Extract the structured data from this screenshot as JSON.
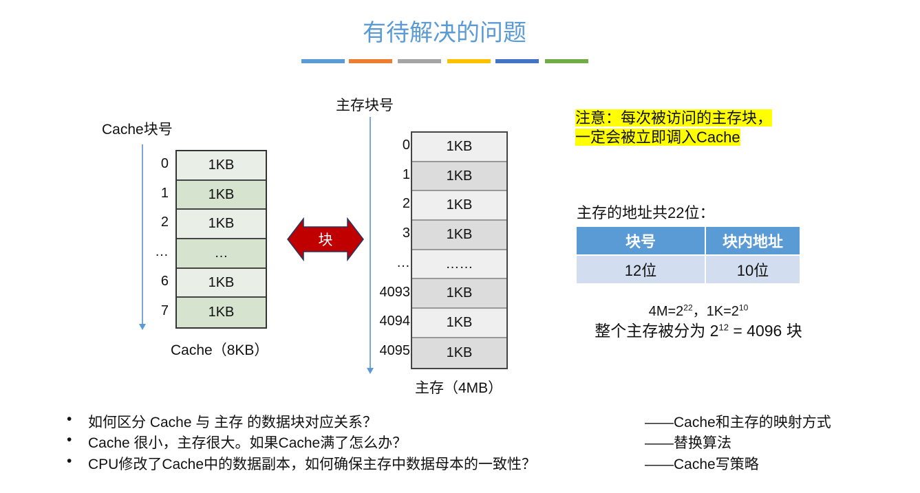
{
  "title": "有待解决的问题",
  "accent_bars": [
    "#5b9bd5",
    "#ed7d31",
    "#a5a5a5",
    "#ffc000",
    "#4472c4",
    "#70ad47"
  ],
  "cache": {
    "axis_label": "Cache块号",
    "caption": "Cache（8KB）",
    "rows": [
      {
        "num": "0",
        "size": "1KB"
      },
      {
        "num": "1",
        "size": "1KB"
      },
      {
        "num": "2",
        "size": "1KB"
      },
      {
        "num": "…",
        "size": "…"
      },
      {
        "num": "6",
        "size": "1KB"
      },
      {
        "num": "7",
        "size": "1KB"
      }
    ]
  },
  "arrow": {
    "label": "块",
    "color": "#c00000"
  },
  "memory": {
    "axis_label": "主存块号",
    "caption": "主存（4MB）",
    "rows": [
      {
        "num": "0",
        "size": "1KB"
      },
      {
        "num": "1",
        "size": "1KB"
      },
      {
        "num": "2",
        "size": "1KB"
      },
      {
        "num": "3",
        "size": "1KB"
      },
      {
        "num": "…",
        "size": "……"
      },
      {
        "num": "4093",
        "size": "1KB"
      },
      {
        "num": "4094",
        "size": "1KB"
      },
      {
        "num": "4095",
        "size": "1KB"
      }
    ]
  },
  "note": {
    "line1": "注意：每次被访问的主存块，",
    "line2": "一定会被立即调入Cache"
  },
  "address": {
    "heading": "主存的地址共22位：",
    "headers": [
      "块号",
      "块内地址"
    ],
    "values": [
      "12位",
      "10位"
    ]
  },
  "formula": {
    "f1a": "4M=2",
    "f1b": "22",
    "f1c": "，1K=2",
    "f1d": "10",
    "f2a": "整个主存被分为 2",
    "f2b": "12",
    "f2c": " = 4096 块"
  },
  "bullets": [
    {
      "q": "如何区分 Cache 与 主存 的数据块对应关系？",
      "a": "——Cache和主存的映射方式"
    },
    {
      "q": "Cache 很小，主存很大。如果Cache满了怎么办？",
      "a": "——替换算法"
    },
    {
      "q": "CPU修改了Cache中的数据副本，如何确保主存中数据母本的一致性？",
      "a": "——Cache写策略"
    }
  ]
}
